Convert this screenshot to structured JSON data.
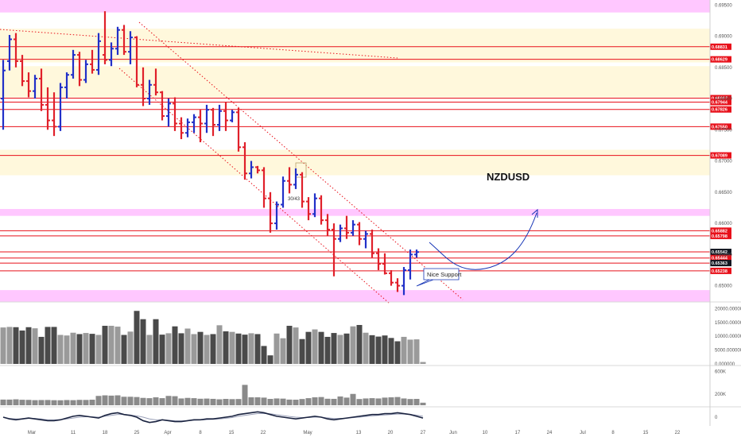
{
  "chart_data": [
    {
      "type": "ohlc",
      "title": "NZDUSD",
      "annotation": "Nice Support",
      "bar_label": "30/43",
      "y_ticks": [
        "0.69500",
        "0.69000",
        "0.68500",
        "0.68000",
        "0.67500",
        "0.67000",
        "0.66500",
        "0.66000",
        "0.65500",
        "0.65000"
      ],
      "ylim": [
        0.6474,
        0.6958
      ],
      "x_ticks": [
        "Mar",
        "11",
        "18",
        "25",
        "Apr",
        "8",
        "15",
        "22",
        "May",
        "13",
        "20",
        "27",
        "Jun",
        "10",
        "17",
        "24",
        "Jul",
        "8",
        "15",
        "22"
      ],
      "price_levels": [
        {
          "label": "0.68831",
          "value": 0.68831
        },
        {
          "label": "0.68629",
          "value": 0.68629
        },
        {
          "label": "0.68007",
          "value": 0.68007
        },
        {
          "label": "0.67944",
          "value": 0.67944
        },
        {
          "label": "0.67826",
          "value": 0.67826
        },
        {
          "label": "0.67550",
          "value": 0.6755
        },
        {
          "label": "0.67089",
          "value": 0.67089
        },
        {
          "label": "0.65882",
          "value": 0.65882
        },
        {
          "label": "0.65798",
          "value": 0.65798
        },
        {
          "label": "0.65542",
          "value": 0.65542,
          "tag_color": "#131722"
        },
        {
          "label": "0.65444",
          "value": 0.65444
        },
        {
          "label": "0.65363",
          "value": 0.65363,
          "tag_color": "#131722"
        },
        {
          "label": "0.65238",
          "value": 0.65238
        }
      ],
      "zones": [
        {
          "from": 0.6938,
          "to": 0.6958,
          "color": "#ff99ff"
        },
        {
          "from": 0.6858,
          "to": 0.6912,
          "color": "#fff2bf"
        },
        {
          "from": 0.6802,
          "to": 0.6852,
          "color": "#fff2bf"
        },
        {
          "from": 0.6677,
          "to": 0.6718,
          "color": "#fff2bf"
        },
        {
          "from": 0.6612,
          "to": 0.6623,
          "color": "#ff99ff"
        },
        {
          "from": 0.6474,
          "to": 0.6493,
          "color": "#ff99ff"
        }
      ],
      "series": [
        {
          "open": 0.68,
          "high": 0.6862,
          "low": 0.675,
          "close": 0.6845
        },
        {
          "open": 0.686,
          "high": 0.6902,
          "low": 0.6845,
          "close": 0.6895
        },
        {
          "open": 0.6895,
          "high": 0.6905,
          "low": 0.685,
          "close": 0.686
        },
        {
          "open": 0.686,
          "high": 0.687,
          "low": 0.682,
          "close": 0.6828
        },
        {
          "open": 0.6828,
          "high": 0.6842,
          "low": 0.6802,
          "close": 0.6812
        },
        {
          "open": 0.6812,
          "high": 0.6838,
          "low": 0.68,
          "close": 0.6832
        },
        {
          "open": 0.6832,
          "high": 0.6848,
          "low": 0.678,
          "close": 0.679
        },
        {
          "open": 0.679,
          "high": 0.6818,
          "low": 0.675,
          "close": 0.6765
        },
        {
          "open": 0.6765,
          "high": 0.681,
          "low": 0.674,
          "close": 0.6755
        },
        {
          "open": 0.6755,
          "high": 0.6825,
          "low": 0.6748,
          "close": 0.6818
        },
        {
          "open": 0.6818,
          "high": 0.6842,
          "low": 0.68,
          "close": 0.6838
        },
        {
          "open": 0.6838,
          "high": 0.6878,
          "low": 0.6832,
          "close": 0.687
        },
        {
          "open": 0.687,
          "high": 0.6875,
          "low": 0.682,
          "close": 0.683
        },
        {
          "open": 0.683,
          "high": 0.6862,
          "low": 0.6825,
          "close": 0.6855
        },
        {
          "open": 0.6855,
          "high": 0.6878,
          "low": 0.684,
          "close": 0.6846
        },
        {
          "open": 0.6846,
          "high": 0.6905,
          "low": 0.6838,
          "close": 0.6892
        },
        {
          "open": 0.687,
          "high": 0.694,
          "low": 0.6855,
          "close": 0.6862
        },
        {
          "open": 0.6862,
          "high": 0.689,
          "low": 0.6852,
          "close": 0.688
        },
        {
          "open": 0.688,
          "high": 0.6915,
          "low": 0.687,
          "close": 0.691
        },
        {
          "open": 0.691,
          "high": 0.6918,
          "low": 0.687,
          "close": 0.6875
        },
        {
          "open": 0.6875,
          "high": 0.6908,
          "low": 0.6855,
          "close": 0.6898
        },
        {
          "open": 0.6898,
          "high": 0.69,
          "low": 0.6818,
          "close": 0.6822
        },
        {
          "open": 0.6822,
          "high": 0.685,
          "low": 0.6788,
          "close": 0.68
        },
        {
          "open": 0.68,
          "high": 0.683,
          "low": 0.679,
          "close": 0.6822
        },
        {
          "open": 0.6822,
          "high": 0.6848,
          "low": 0.6805,
          "close": 0.681
        },
        {
          "open": 0.681,
          "high": 0.6812,
          "low": 0.6765,
          "close": 0.6772
        },
        {
          "open": 0.6772,
          "high": 0.68,
          "low": 0.6755,
          "close": 0.6792
        },
        {
          "open": 0.6792,
          "high": 0.6802,
          "low": 0.6748,
          "close": 0.676
        },
        {
          "open": 0.676,
          "high": 0.677,
          "low": 0.6735,
          "close": 0.6745
        },
        {
          "open": 0.6745,
          "high": 0.6768,
          "low": 0.6738,
          "close": 0.6762
        },
        {
          "open": 0.6762,
          "high": 0.6775,
          "low": 0.6745,
          "close": 0.677
        },
        {
          "open": 0.677,
          "high": 0.6782,
          "low": 0.673,
          "close": 0.676
        },
        {
          "open": 0.676,
          "high": 0.679,
          "low": 0.6745,
          "close": 0.6782
        },
        {
          "open": 0.6782,
          "high": 0.6785,
          "low": 0.674,
          "close": 0.6758
        },
        {
          "open": 0.6758,
          "high": 0.679,
          "low": 0.6748,
          "close": 0.678
        },
        {
          "open": 0.678,
          "high": 0.6795,
          "low": 0.6748,
          "close": 0.6765
        },
        {
          "open": 0.6765,
          "high": 0.6782,
          "low": 0.6762,
          "close": 0.6778
        },
        {
          "open": 0.6778,
          "high": 0.6785,
          "low": 0.6715,
          "close": 0.6722
        },
        {
          "open": 0.6722,
          "high": 0.673,
          "low": 0.667,
          "close": 0.668
        },
        {
          "open": 0.668,
          "high": 0.67,
          "low": 0.6672,
          "close": 0.669
        },
        {
          "open": 0.669,
          "high": 0.6692,
          "low": 0.668,
          "close": 0.6685
        },
        {
          "open": 0.6685,
          "high": 0.669,
          "low": 0.6625,
          "close": 0.664
        },
        {
          "open": 0.664,
          "high": 0.665,
          "low": 0.6585,
          "close": 0.66
        },
        {
          "open": 0.66,
          "high": 0.6635,
          "low": 0.659,
          "close": 0.663
        },
        {
          "open": 0.663,
          "high": 0.6675,
          "low": 0.6625,
          "close": 0.6668
        },
        {
          "open": 0.6668,
          "high": 0.669,
          "low": 0.6648,
          "close": 0.6662
        },
        {
          "open": 0.6662,
          "high": 0.6688,
          "low": 0.6655,
          "close": 0.6678
        },
        {
          "open": 0.6678,
          "high": 0.6682,
          "low": 0.6625,
          "close": 0.6635
        },
        {
          "open": 0.6635,
          "high": 0.6642,
          "low": 0.6605,
          "close": 0.6615
        },
        {
          "open": 0.6615,
          "high": 0.6648,
          "low": 0.661,
          "close": 0.664
        },
        {
          "open": 0.664,
          "high": 0.6645,
          "low": 0.6598,
          "close": 0.6605
        },
        {
          "open": 0.6605,
          "high": 0.6615,
          "low": 0.658,
          "close": 0.659
        },
        {
          "open": 0.659,
          "high": 0.66,
          "low": 0.6515,
          "close": 0.6575
        },
        {
          "open": 0.6575,
          "high": 0.6598,
          "low": 0.657,
          "close": 0.6592
        },
        {
          "open": 0.6592,
          "high": 0.6612,
          "low": 0.6575,
          "close": 0.6585
        },
        {
          "open": 0.6585,
          "high": 0.6605,
          "low": 0.658,
          "close": 0.6598
        },
        {
          "open": 0.6598,
          "high": 0.6602,
          "low": 0.6565,
          "close": 0.6575
        },
        {
          "open": 0.6575,
          "high": 0.6588,
          "low": 0.656,
          "close": 0.6583
        },
        {
          "open": 0.6583,
          "high": 0.659,
          "low": 0.6545,
          "close": 0.6552
        },
        {
          "open": 0.6552,
          "high": 0.656,
          "low": 0.6525,
          "close": 0.6535
        },
        {
          "open": 0.6535,
          "high": 0.6552,
          "low": 0.6518,
          "close": 0.652
        },
        {
          "open": 0.652,
          "high": 0.6525,
          "low": 0.65,
          "close": 0.6505
        },
        {
          "open": 0.6505,
          "high": 0.6512,
          "low": 0.649,
          "close": 0.65
        },
        {
          "open": 0.65,
          "high": 0.653,
          "low": 0.6485,
          "close": 0.6525
        },
        {
          "open": 0.6525,
          "high": 0.6558,
          "low": 0.651,
          "close": 0.655
        },
        {
          "open": 0.655,
          "high": 0.6558,
          "low": 0.6545,
          "close": 0.6554
        }
      ]
    },
    {
      "type": "bar",
      "y_ticks": [
        "20000.000000",
        "15000.000000",
        "10000.000000",
        "5000.000000",
        "0.000000"
      ],
      "ylim": [
        0,
        21000
      ],
      "values": [
        13200,
        13400,
        13300,
        12100,
        13300,
        12900,
        9800,
        13400,
        13400,
        10500,
        10300,
        11300,
        10800,
        11200,
        10900,
        10500,
        13800,
        13800,
        13500,
        10500,
        11700,
        19200,
        16200,
        10500,
        16200,
        10600,
        11100,
        13600,
        11100,
        12800,
        10800,
        11600,
        10500,
        10800,
        14000,
        11800,
        11600,
        11000,
        10600,
        11100,
        10800,
        6500,
        3100,
        11000,
        9300,
        13800,
        13200,
        9000,
        11600,
        12500,
        11600,
        9800,
        11200,
        10500,
        11000,
        13600,
        14100,
        11300,
        10400,
        9900,
        10300,
        9400,
        8200,
        9800,
        8800,
        8900,
        700
      ]
    },
    {
      "type": "bar",
      "y_ticks": [
        "600K",
        "200K"
      ],
      "ylim": [
        0,
        660000
      ],
      "values": [
        100000,
        100000,
        105000,
        97000,
        95000,
        90000,
        92000,
        93000,
        89000,
        88000,
        92000,
        90000,
        95000,
        94000,
        98000,
        165000,
        175000,
        170000,
        175000,
        150000,
        150000,
        145000,
        130000,
        125000,
        140000,
        125000,
        165000,
        160000,
        120000,
        130000,
        125000,
        115000,
        118000,
        113000,
        105000,
        112000,
        108000,
        110000,
        360000,
        140000,
        140000,
        135000,
        112000,
        120000,
        117000,
        100000,
        98000,
        110000,
        125000,
        140000,
        145000,
        115000,
        113000,
        155000,
        135000,
        200000,
        110000,
        120000,
        125000,
        120000,
        135000,
        140000,
        145000,
        120000,
        110000,
        112000,
        45000
      ]
    },
    {
      "type": "line",
      "y_ticks": [
        "0"
      ],
      "ylim": [
        -0.9,
        0.9
      ],
      "series": [
        {
          "values": [
            0,
            -0.2,
            -0.3,
            -0.2,
            -0.1,
            -0.2,
            -0.3,
            -0.4,
            -0.4,
            -0.3,
            -0.1,
            0.1,
            0.2,
            0.1,
            0,
            -0.1,
            0.2,
            0.4,
            0.5,
            0.3,
            0.2,
            0,
            -0.4,
            -0.6,
            -0.5,
            -0.3,
            -0.4,
            -0.5,
            -0.5,
            -0.4,
            -0.3,
            -0.3,
            -0.2,
            -0.2,
            -0.1,
            0,
            0.1,
            0.3,
            0.4,
            0.5,
            0.6,
            0.5,
            0.3,
            0.1,
            0,
            -0.1,
            -0.2,
            -0.1,
            0,
            0.1,
            0,
            -0.2,
            -0.3,
            -0.2,
            -0.1,
            0,
            0.1,
            0.2,
            0.3,
            0.3,
            0.4,
            0.4,
            0.5,
            0.4,
            0.3,
            0.1,
            -0.1
          ]
        },
        {
          "values": [
            0,
            -0.15,
            -0.2,
            -0.2,
            -0.15,
            -0.15,
            -0.2,
            -0.3,
            -0.3,
            -0.28,
            -0.2,
            -0.1,
            0,
            0.05,
            0.05,
            0,
            0.1,
            0.2,
            0.3,
            0.3,
            0.25,
            0.15,
            0,
            -0.2,
            -0.3,
            -0.3,
            -0.35,
            -0.4,
            -0.42,
            -0.4,
            -0.35,
            -0.32,
            -0.28,
            -0.25,
            -0.2,
            -0.12,
            -0.05,
            0.1,
            0.2,
            0.3,
            0.4,
            0.42,
            0.38,
            0.28,
            0.18,
            0.08,
            0,
            -0.05,
            -0.05,
            0,
            0,
            -0.08,
            -0.15,
            -0.15,
            -0.12,
            -0.06,
            0,
            0.08,
            0.15,
            0.2,
            0.25,
            0.3,
            0.35,
            0.35,
            0.32,
            0.22,
            0.1
          ]
        }
      ]
    }
  ],
  "colors": {
    "up": "#2130c8",
    "down": "#e0202a",
    "level": "#e8101a",
    "arrow": "#1433b5",
    "volume_dark": "#4a4a4a",
    "volume_light": "#9a9a9a"
  }
}
